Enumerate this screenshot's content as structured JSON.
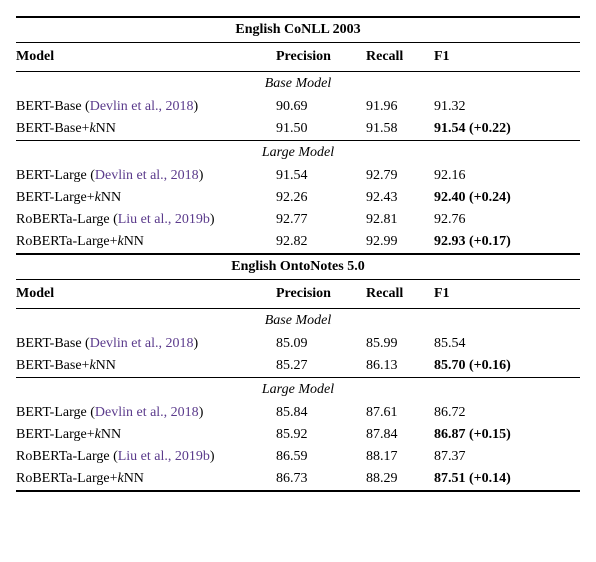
{
  "datasets": [
    {
      "name": "English CoNLL 2003",
      "headers": {
        "model": "Model",
        "precision": "Precision",
        "recall": "Recall",
        "f1": "F1"
      },
      "groups": [
        {
          "label": "Base Model",
          "rows": [
            {
              "model_prefix": "BERT-Base (",
              "cite": "Devlin et al., 2018",
              "model_suffix": ")",
              "precision": "90.69",
              "recall": "91.96",
              "f1": "91.32",
              "f1_bold": false
            },
            {
              "model_prefix": "BERT-Base+",
              "knn": true,
              "model_suffix": "",
              "precision": "91.50",
              "recall": "91.58",
              "f1": "91.54 (+0.22)",
              "f1_bold": true
            }
          ]
        },
        {
          "label": "Large Model",
          "rows": [
            {
              "model_prefix": "BERT-Large (",
              "cite": "Devlin et al., 2018",
              "model_suffix": ")",
              "precision": "91.54",
              "recall": "92.79",
              "f1": "92.16",
              "f1_bold": false
            },
            {
              "model_prefix": "BERT-Large+",
              "knn": true,
              "model_suffix": "",
              "precision": "92.26",
              "recall": "92.43",
              "f1": "92.40 (+0.24)",
              "f1_bold": true
            },
            {
              "model_prefix": "RoBERTa-Large (",
              "cite": "Liu et al., 2019b",
              "model_suffix": ")",
              "precision": "92.77",
              "recall": "92.81",
              "f1": "92.76",
              "f1_bold": false
            },
            {
              "model_prefix": "RoBERTa-Large+",
              "knn": true,
              "model_suffix": "",
              "precision": "92.82",
              "recall": "92.99",
              "f1": "92.93 (+0.17)",
              "f1_bold": true
            }
          ]
        }
      ]
    },
    {
      "name": "English OntoNotes 5.0",
      "headers": {
        "model": "Model",
        "precision": "Precision",
        "recall": "Recall",
        "f1": "F1"
      },
      "groups": [
        {
          "label": "Base Model",
          "rows": [
            {
              "model_prefix": "BERT-Base (",
              "cite": "Devlin et al., 2018",
              "model_suffix": ")",
              "precision": "85.09",
              "recall": "85.99",
              "f1": "85.54",
              "f1_bold": false
            },
            {
              "model_prefix": "BERT-Base+",
              "knn": true,
              "model_suffix": "",
              "precision": "85.27",
              "recall": "86.13",
              "f1": "85.70 (+0.16)",
              "f1_bold": true
            }
          ]
        },
        {
          "label": "Large Model",
          "rows": [
            {
              "model_prefix": "BERT-Large (",
              "cite": "Devlin et al., 2018",
              "model_suffix": ")",
              "precision": "85.84",
              "recall": "87.61",
              "f1": "86.72",
              "f1_bold": false
            },
            {
              "model_prefix": "BERT-Large+",
              "knn": true,
              "model_suffix": "",
              "precision": "85.92",
              "recall": "87.84",
              "f1": "86.87 (+0.15)",
              "f1_bold": true
            },
            {
              "model_prefix": "RoBERTa-Large (",
              "cite": "Liu et al., 2019b",
              "model_suffix": ")",
              "precision": "86.59",
              "recall": "88.17",
              "f1": "87.37",
              "f1_bold": false
            },
            {
              "model_prefix": "RoBERTa-Large+",
              "knn": true,
              "model_suffix": "",
              "precision": "86.73",
              "recall": "88.29",
              "f1": "87.51 (+0.14)",
              "f1_bold": true
            }
          ]
        }
      ]
    }
  ],
  "colors": {
    "citation": "#5b3b8c",
    "text": "#000000",
    "background": "#ffffff",
    "rule": "#000000"
  },
  "knn_label": {
    "k": "k",
    "nn": "NN"
  }
}
